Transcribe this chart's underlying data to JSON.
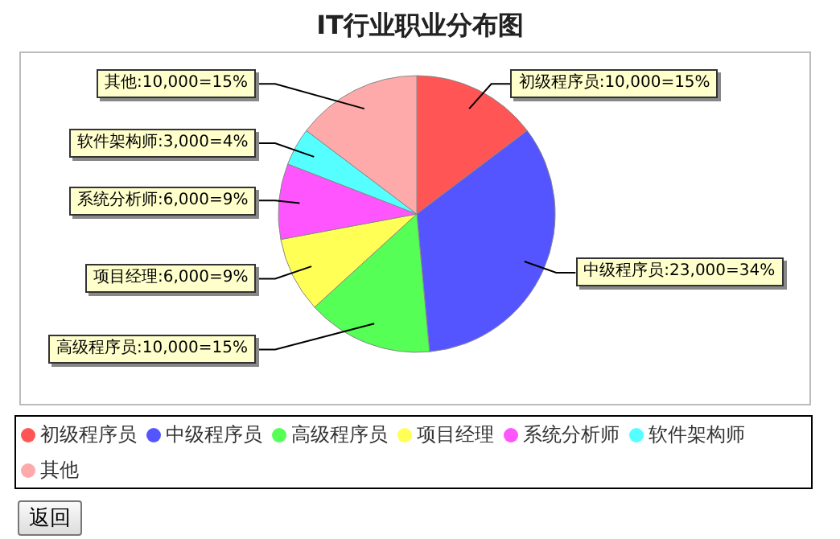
{
  "chart_data": {
    "type": "pie",
    "title": "IT行业职业分布图",
    "categories": [
      "初级程序员",
      "中级程序员",
      "高级程序员",
      "项目经理",
      "系统分析师",
      "软件架构师",
      "其他"
    ],
    "values": [
      10000,
      23000,
      10000,
      6000,
      6000,
      3000,
      10000
    ],
    "colors": [
      "#ff5555",
      "#5555ff",
      "#55ff55",
      "#ffff55",
      "#ff55ff",
      "#55ffff",
      "#ffaaaa"
    ],
    "value_labels": [
      "初级程序员:10,000=15%",
      "中级程序员:23,000=34%",
      "高级程序员:10,000=15%",
      "项目经理:6,000=9%",
      "系统分析师:6,000=9%",
      "软件架构师:3,000=4%",
      "其他:10,000=15%"
    ],
    "legend": "bottom",
    "annotations": [
      "返回"
    ]
  }
}
